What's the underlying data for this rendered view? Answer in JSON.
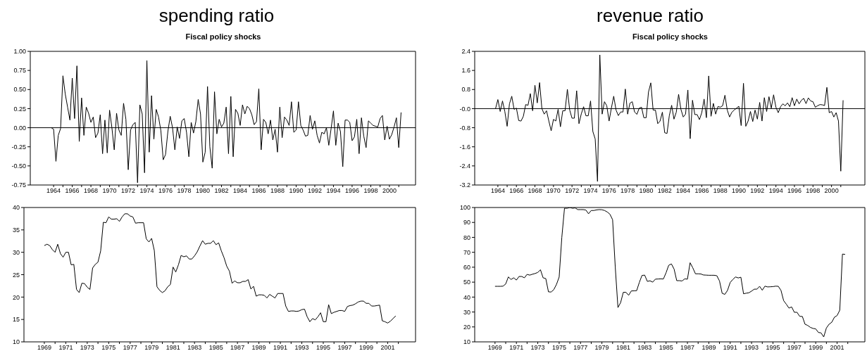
{
  "chart_data": [
    {
      "type": "line",
      "title": "spending ratio",
      "subtitle": "Fiscal policy shocks",
      "color": "#000000",
      "x": [
        1963.75,
        1964,
        1964.25,
        1964.5,
        1964.75,
        1965,
        1965.25,
        1965.5,
        1965.75,
        1966,
        1966.25,
        1966.5,
        1966.75,
        1967,
        1967.25,
        1967.5,
        1967.75,
        1968,
        1968.25,
        1968.5,
        1968.75,
        1969,
        1969.25,
        1969.5,
        1969.75,
        1970,
        1970.25,
        1970.5,
        1970.75,
        1971,
        1971.25,
        1971.5,
        1971.75,
        1972,
        1972.25,
        1972.5,
        1972.75,
        1973,
        1973.25,
        1973.5,
        1973.75,
        1974,
        1974.25,
        1974.5,
        1974.75,
        1975,
        1975.25,
        1975.5,
        1975.75,
        1976,
        1976.25,
        1976.5,
        1976.75,
        1977,
        1977.25,
        1977.5,
        1977.75,
        1978,
        1978.25,
        1978.5,
        1978.75,
        1979,
        1979.25,
        1979.5,
        1979.75,
        1980,
        1980.25,
        1980.5,
        1980.75,
        1981,
        1981.25,
        1981.5,
        1981.75,
        1982,
        1982.25,
        1982.5,
        1982.75,
        1983,
        1983.25,
        1983.5,
        1983.75,
        1984,
        1984.25,
        1984.5,
        1984.75,
        1985,
        1985.25,
        1985.5,
        1985.75,
        1986,
        1986.25,
        1986.5,
        1986.75,
        1987,
        1987.25,
        1987.5,
        1987.75,
        1988,
        1988.25,
        1988.5,
        1988.75,
        1989,
        1989.25,
        1989.5,
        1989.75,
        1990,
        1990.25,
        1990.5,
        1990.75,
        1991,
        1991.25,
        1991.5,
        1991.75,
        1992,
        1992.25,
        1992.5,
        1992.75,
        1993,
        1993.25,
        1993.5,
        1993.75,
        1994,
        1994.25,
        1994.5,
        1994.75,
        1995,
        1995.25,
        1995.5,
        1995.75,
        1996,
        1996.25,
        1996.5,
        1996.75,
        1997,
        1997.25,
        1997.5,
        1997.75,
        1998,
        1998.25,
        1998.5,
        1998.75,
        1999,
        1999.25,
        1999.5,
        1999.75,
        2000,
        2000.25,
        2000.5,
        2000.75,
        2001,
        2001.25
      ],
      "values": [
        0,
        -0.02,
        -0.44,
        -0.1,
        -0.01,
        0.68,
        0.44,
        0.27,
        0.1,
        0.65,
        0.12,
        0.81,
        -0.18,
        0.39,
        -0.1,
        0.27,
        0.19,
        0.07,
        0.14,
        -0.13,
        -0.07,
        0.17,
        -0.34,
        0.1,
        -0.33,
        0.23,
        0,
        -0.29,
        0.19,
        -0.03,
        -0.1,
        0.32,
        0.11,
        -0.55,
        -0.03,
        0.04,
        0.07,
        -0.72,
        0.3,
        0.18,
        -0.59,
        0.88,
        -0.32,
        0.42,
        -0.15,
        0.24,
        0.14,
        -0.04,
        -0.42,
        -0.35,
        -0.05,
        0.15,
        0,
        -0.29,
        0.01,
        -0.14,
        0.09,
        0.12,
        -0.06,
        -0.38,
        0.07,
        -0.07,
        0.08,
        0.37,
        0.18,
        -0.45,
        -0.32,
        0.54,
        -0.25,
        -0.53,
        0.47,
        -0.08,
        0.11,
        0.01,
        0.06,
        0.27,
        -0.34,
        0.41,
        -0.38,
        0.24,
        0.19,
        0.03,
        0.3,
        0.18,
        0.28,
        0.25,
        0.17,
        0.04,
        0.08,
        0.51,
        -0.29,
        0.11,
        0.07,
        -0.08,
        0.1,
        -0.16,
        -0.02,
        -0.32,
        0.27,
        -0.13,
        0.14,
        0.1,
        0.03,
        0.34,
        -0.06,
        -0.03,
        0.34,
        0.03,
        -0.03,
        -0.11,
        -0.1,
        0.16,
        -0.02,
        0.09,
        -0.1,
        -0.2,
        -0.06,
        -0.08,
        0,
        -0.23,
        -0.01,
        0.22,
        -0.23,
        0.06,
        -0.05,
        -0.51,
        0.1,
        0.1,
        0.07,
        -0.17,
        -0.12,
        0.11,
        -0.34,
        0.13,
        -0.11,
        -0.26,
        0.09,
        0.06,
        0.03,
        0.02,
        0.01,
        0.12,
        0.16,
        -0.16,
        0.02,
        -0.15,
        -0.09,
        0.01,
        0.13,
        -0.26,
        0.2
      ],
      "xlim": [
        1961.5,
        2002.8
      ],
      "xticks": [
        1964,
        {
          "value": 1965,
          "label": null
        },
        1966,
        {
          "value": 1967,
          "label": null
        },
        1968,
        {
          "value": 1969,
          "label": null
        },
        1970,
        {
          "value": 1971,
          "label": null
        },
        1972,
        {
          "value": 1973,
          "label": null
        },
        1974,
        {
          "value": 1975,
          "label": null
        },
        1976,
        {
          "value": 1977,
          "label": null
        },
        1978,
        {
          "value": 1979,
          "label": null
        },
        1980,
        {
          "value": 1981,
          "label": null
        },
        1982,
        {
          "value": 1983,
          "label": null
        },
        1984,
        {
          "value": 1985,
          "label": null
        },
        1986,
        {
          "value": 1987,
          "label": null
        },
        1988,
        {
          "value": 1989,
          "label": null
        },
        1990,
        {
          "value": 1991,
          "label": null
        },
        1992,
        {
          "value": 1993,
          "label": null
        },
        1994,
        {
          "value": 1995,
          "label": null
        },
        1996,
        {
          "value": 1997,
          "label": null
        },
        1998,
        {
          "value": 1999,
          "label": null
        },
        2000,
        {
          "value": 2001,
          "label": null
        }
      ],
      "ylim": [
        -0.75,
        1
      ],
      "yticks": [
        {
          "value": -0.75,
          "label": "-0.75"
        },
        {
          "value": -0.5,
          "label": "-0.50"
        },
        {
          "value": -0.25,
          "label": "-0.25"
        },
        {
          "value": 0,
          "label": "0.00"
        },
        {
          "value": 0.25,
          "label": "0.25"
        },
        {
          "value": 0.5,
          "label": "0.50"
        },
        {
          "value": 0.75,
          "label": "0.75"
        },
        {
          "value": 1,
          "label": "1.00"
        }
      ],
      "ref_lines": [
        {
          "axis": "y",
          "value": 0,
          "color": "#000000"
        }
      ]
    },
    {
      "type": "line",
      "title": "revenue ratio",
      "subtitle": "Fiscal policy shocks",
      "color": "#000000",
      "x": [
        1963.75,
        1964,
        1964.25,
        1964.5,
        1964.75,
        1965,
        1965.25,
        1965.5,
        1965.75,
        1966,
        1966.25,
        1966.5,
        1966.75,
        1967,
        1967.25,
        1967.5,
        1967.75,
        1968,
        1968.25,
        1968.5,
        1968.75,
        1969,
        1969.25,
        1969.5,
        1969.75,
        1970,
        1970.25,
        1970.5,
        1970.75,
        1971,
        1971.25,
        1971.5,
        1971.75,
        1972,
        1972.25,
        1972.5,
        1972.75,
        1973,
        1973.25,
        1973.5,
        1973.75,
        1974,
        1974.25,
        1974.5,
        1974.75,
        1975,
        1975.25,
        1975.5,
        1975.75,
        1976,
        1976.25,
        1976.5,
        1976.75,
        1977,
        1977.25,
        1977.5,
        1977.75,
        1978,
        1978.25,
        1978.5,
        1978.75,
        1979,
        1979.25,
        1979.5,
        1979.75,
        1980,
        1980.25,
        1980.5,
        1980.75,
        1981,
        1981.25,
        1981.5,
        1981.75,
        1982,
        1982.25,
        1982.5,
        1982.75,
        1983,
        1983.25,
        1983.5,
        1983.75,
        1984,
        1984.25,
        1984.5,
        1984.75,
        1985,
        1985.25,
        1985.5,
        1985.75,
        1986,
        1986.25,
        1986.5,
        1986.75,
        1987,
        1987.25,
        1987.5,
        1987.75,
        1988,
        1988.25,
        1988.5,
        1988.75,
        1989,
        1989.25,
        1989.5,
        1989.75,
        1990,
        1990.25,
        1990.5,
        1990.75,
        1991,
        1991.25,
        1991.5,
        1991.75,
        1992,
        1992.25,
        1992.5,
        1992.75,
        1993,
        1993.25,
        1993.5,
        1993.75,
        1994,
        1994.25,
        1994.5,
        1994.75,
        1995,
        1995.25,
        1995.5,
        1995.75,
        1996,
        1996.25,
        1996.5,
        1996.75,
        1997,
        1997.25,
        1997.5,
        1997.75,
        1998,
        1998.25,
        1998.5,
        1998.75,
        1999,
        1999.25,
        1999.5,
        1999.75,
        2000,
        2000.25,
        2000.5,
        2000.75,
        2001,
        2001.25
      ],
      "values": [
        0,
        0.38,
        -0.12,
        0.32,
        -0.12,
        -0.74,
        0.2,
        0.52,
        -0.03,
        0.02,
        -0.5,
        -0.52,
        -0.32,
        0.17,
        0.14,
        0.63,
        -0.09,
        0.98,
        0.24,
        1.09,
        0,
        -0.23,
        -0.09,
        -0.52,
        -0.93,
        -0.45,
        -0.52,
        -0.03,
        -0.76,
        -0.09,
        -0.09,
        0.81,
        -0.06,
        -0.4,
        -0.4,
        0.75,
        -0.63,
        -0.22,
        0.08,
        -0.3,
        -0.3,
        0.32,
        -0.96,
        -1.27,
        -3.05,
        2.25,
        -0.23,
        0.29,
        0.12,
        -0.52,
        0.03,
        0.52,
        -0.06,
        -0.29,
        -0.14,
        -0.14,
        0.82,
        -0.23,
        0.23,
        0.29,
        -0.14,
        -0.24,
        0.02,
        0.06,
        -0.38,
        -0.38,
        0.69,
        1.08,
        -0.06,
        -0.06,
        -0.63,
        -0.52,
        -0.15,
        -1.01,
        -1.04,
        -0.29,
        0.14,
        -0.44,
        -0.15,
        0.6,
        -0.03,
        -0.35,
        -0.23,
        0.78,
        -1.26,
        0.35,
        -0.25,
        -0.25,
        -0.46,
        -0.17,
        0.4,
        -0.38,
        1.37,
        -0.32,
        0.22,
        -0.23,
        0.09,
        0.06,
        0.12,
        0.56,
        -0.06,
        -0.35,
        -0.15,
        -0.06,
        0.02,
        0.1,
        -0.71,
        1.06,
        -0.74,
        -0.52,
        -0.12,
        -0.54,
        -0.06,
        -0.44,
        0.26,
        -0.52,
        0.46,
        -0.12,
        0.5,
        0.02,
        0.58,
        0.06,
        -0.17,
        0.08,
        0.2,
        0.12,
        0.24,
        0.08,
        0.46,
        0.12,
        0.4,
        0.2,
        0.35,
        0.43,
        0.21,
        0.45,
        0.32,
        0.29,
        0.06,
        0.12,
        0.17,
        0.16,
        0.13,
        0.89,
        -0.17,
        -0.12,
        -0.35,
        -0.17,
        -0.52,
        -2.62,
        0.35
      ],
      "xlim": [
        1961.5,
        2003.6
      ],
      "xticks": [
        1964,
        {
          "value": 1965,
          "label": null
        },
        1966,
        {
          "value": 1967,
          "label": null
        },
        1968,
        {
          "value": 1969,
          "label": null
        },
        1970,
        {
          "value": 1971,
          "label": null
        },
        1972,
        {
          "value": 1973,
          "label": null
        },
        1974,
        {
          "value": 1975,
          "label": null
        },
        1976,
        {
          "value": 1977,
          "label": null
        },
        1978,
        {
          "value": 1979,
          "label": null
        },
        1980,
        {
          "value": 1981,
          "label": null
        },
        1982,
        {
          "value": 1983,
          "label": null
        },
        1984,
        {
          "value": 1985,
          "label": null
        },
        1986,
        {
          "value": 1987,
          "label": null
        },
        1988,
        {
          "value": 1989,
          "label": null
        },
        1990,
        {
          "value": 1991,
          "label": null
        },
        1992,
        {
          "value": 1993,
          "label": null
        },
        1994,
        {
          "value": 1995,
          "label": null
        },
        1996,
        {
          "value": 1997,
          "label": null
        },
        1998,
        {
          "value": 1999,
          "label": null
        },
        2000,
        {
          "value": 2001,
          "label": null
        }
      ],
      "ylim": [
        -3.2,
        2.4
      ],
      "yticks": [
        -3.2,
        -2.4,
        -1.6,
        -0.8,
        {
          "value": 0,
          "label": "-0.0"
        },
        0.8,
        1.6,
        2.4
      ],
      "ref_lines": [
        {
          "axis": "y",
          "value": 0,
          "color": "#000000"
        }
      ]
    },
    {
      "type": "line",
      "color": "#000000",
      "x": [
        1969,
        1969.25,
        1969.5,
        1969.75,
        1970,
        1970.25,
        1970.5,
        1970.75,
        1971,
        1971.25,
        1971.5,
        1971.75,
        1972,
        1972.25,
        1972.5,
        1972.75,
        1973,
        1973.25,
        1973.5,
        1973.75,
        1974,
        1974.25,
        1974.5,
        1974.75,
        1975,
        1975.25,
        1975.5,
        1975.75,
        1976,
        1976.25,
        1976.5,
        1976.75,
        1977,
        1977.25,
        1977.5,
        1977.75,
        1978,
        1978.25,
        1978.5,
        1978.75,
        1979,
        1979.25,
        1979.5,
        1979.75,
        1980,
        1980.25,
        1980.5,
        1980.75,
        1981,
        1981.25,
        1981.5,
        1981.75,
        1982,
        1982.25,
        1982.5,
        1982.75,
        1983,
        1983.25,
        1983.5,
        1983.75,
        1984,
        1984.25,
        1984.5,
        1984.75,
        1985,
        1985.25,
        1985.5,
        1985.75,
        1986,
        1986.25,
        1986.5,
        1986.75,
        1987,
        1987.25,
        1987.5,
        1987.75,
        1988,
        1988.25,
        1988.5,
        1988.75,
        1989,
        1989.25,
        1989.5,
        1989.75,
        1990,
        1990.25,
        1990.5,
        1990.75,
        1991,
        1991.25,
        1991.5,
        1991.75,
        1992,
        1992.25,
        1992.5,
        1992.75,
        1993,
        1993.25,
        1993.5,
        1993.75,
        1994,
        1994.25,
        1994.5,
        1994.75,
        1995,
        1995.25,
        1995.5,
        1995.75,
        1996,
        1996.25,
        1996.5,
        1996.75,
        1997,
        1997.25,
        1997.5,
        1997.75,
        1998,
        1998.25,
        1998.5,
        1998.75,
        1999,
        1999.25,
        1999.5,
        1999.75,
        2000,
        2000.25,
        2000.5,
        2000.75,
        2001,
        2001.25,
        2001.5,
        2001.75
      ],
      "values": [
        31.5,
        31.8,
        31.5,
        30.6,
        30,
        31.8,
        29.7,
        28.9,
        30,
        30,
        27.2,
        27.3,
        21.7,
        21,
        23.1,
        23,
        22.2,
        21.7,
        26.5,
        27.3,
        27.8,
        30.3,
        36.7,
        36.6,
        37.9,
        37.4,
        37.4,
        37.5,
        36.9,
        37.9,
        38.6,
        38.6,
        38.1,
        37.9,
        36.5,
        36.6,
        36.6,
        36.6,
        33,
        32.3,
        33.1,
        30.4,
        22.3,
        21.5,
        21,
        21.4,
        22.3,
        22.8,
        26.7,
        25.6,
        27.2,
        29.3,
        29,
        29.2,
        28.5,
        28.5,
        29.2,
        30.1,
        31.4,
        32.6,
        31.8,
        32,
        32,
        32.6,
        31.7,
        32.1,
        30.3,
        28.8,
        26.9,
        25.8,
        23.1,
        23.6,
        23.2,
        23.2,
        23.5,
        23.5,
        23.9,
        21.8,
        22.4,
        20.2,
        20.5,
        20.5,
        20.4,
        19.8,
        20.6,
        20.2,
        19.8,
        20.8,
        20.8,
        20.8,
        18,
        16.8,
        16.9,
        16.9,
        16.8,
        16.9,
        17.2,
        17.3,
        15.6,
        14.5,
        15.2,
        14.9,
        15.6,
        16.5,
        14.5,
        14.5,
        18.3,
        16.3,
        16.6,
        16.8,
        17,
        17,
        16.8,
        17.9,
        18.1,
        18.2,
        18.5,
        18.9,
        19.1,
        19.1,
        18.6,
        18.6,
        18,
        18,
        18.1,
        18.2,
        14.7,
        14.5,
        14.2,
        14.6,
        15.2,
        15.8
      ],
      "xlim": [
        1967.1,
        2003.6
      ],
      "xticks": [
        1969,
        {
          "value": 1970,
          "label": null
        },
        1971,
        {
          "value": 1972,
          "label": null
        },
        1973,
        {
          "value": 1974,
          "label": null
        },
        1975,
        {
          "value": 1976,
          "label": null
        },
        1977,
        {
          "value": 1978,
          "label": null
        },
        1979,
        {
          "value": 1980,
          "label": null
        },
        1981,
        {
          "value": 1982,
          "label": null
        },
        1983,
        {
          "value": 1984,
          "label": null
        },
        1985,
        {
          "value": 1986,
          "label": null
        },
        1987,
        {
          "value": 1988,
          "label": null
        },
        1989,
        {
          "value": 1990,
          "label": null
        },
        1991,
        {
          "value": 1992,
          "label": null
        },
        1993,
        {
          "value": 1994,
          "label": null
        },
        1995,
        {
          "value": 1996,
          "label": null
        },
        1997,
        {
          "value": 1998,
          "label": null
        },
        1999,
        {
          "value": 2000,
          "label": null
        },
        2001,
        {
          "value": 2002,
          "label": null
        }
      ],
      "ylim": [
        10,
        40
      ],
      "yticks": [
        10,
        15,
        20,
        25,
        30,
        35,
        40
      ]
    },
    {
      "type": "line",
      "color": "#000000",
      "x": [
        1969,
        1969.25,
        1969.5,
        1969.75,
        1970,
        1970.25,
        1970.5,
        1970.75,
        1971,
        1971.25,
        1971.5,
        1971.75,
        1972,
        1972.25,
        1972.5,
        1972.75,
        1973,
        1973.25,
        1973.5,
        1973.75,
        1974,
        1974.25,
        1974.5,
        1974.75,
        1975,
        1975.25,
        1975.5,
        1975.75,
        1976,
        1976.25,
        1976.5,
        1976.75,
        1977,
        1977.25,
        1977.5,
        1977.75,
        1978,
        1978.25,
        1978.5,
        1978.75,
        1979,
        1979.25,
        1979.5,
        1979.75,
        1980,
        1980.25,
        1980.5,
        1980.75,
        1981,
        1981.25,
        1981.5,
        1981.75,
        1982,
        1982.25,
        1982.5,
        1982.75,
        1983,
        1983.25,
        1983.5,
        1983.75,
        1984,
        1984.25,
        1984.5,
        1984.75,
        1985,
        1985.25,
        1985.5,
        1985.75,
        1986,
        1986.25,
        1986.5,
        1986.75,
        1987,
        1987.25,
        1987.5,
        1987.75,
        1988,
        1988.25,
        1988.5,
        1988.75,
        1989,
        1989.25,
        1989.5,
        1989.75,
        1990,
        1990.25,
        1990.5,
        1990.75,
        1991,
        1991.25,
        1991.5,
        1991.75,
        1992,
        1992.25,
        1992.5,
        1992.75,
        1993,
        1993.25,
        1993.5,
        1993.75,
        1994,
        1994.25,
        1994.5,
        1994.75,
        1995,
        1995.25,
        1995.5,
        1995.75,
        1996,
        1996.25,
        1996.5,
        1996.75,
        1997,
        1997.25,
        1997.5,
        1997.75,
        1998,
        1998.25,
        1998.5,
        1998.75,
        1999,
        1999.25,
        1999.5,
        1999.75,
        2000,
        2000.25,
        2000.5,
        2000.75,
        2001,
        2001.25,
        2001.5,
        2001.75
      ],
      "values": [
        47.2,
        47.2,
        47.2,
        47.3,
        48.8,
        53.5,
        51.8,
        52.9,
        51.4,
        53.8,
        53.8,
        52.9,
        55.2,
        54.7,
        55.3,
        55.8,
        56.5,
        58.3,
        52.9,
        52.4,
        43.5,
        43.4,
        45,
        48.5,
        53.4,
        80,
        99.5,
        99.5,
        100,
        99.5,
        99.7,
        98.6,
        98.6,
        98.6,
        98.3,
        95.8,
        98,
        98,
        98.4,
        98.6,
        98.5,
        98,
        97,
        95.5,
        91.8,
        60,
        33,
        36.3,
        43.2,
        43.2,
        41.2,
        44.1,
        44.2,
        44.3,
        49.8,
        54.5,
        54.7,
        50.5,
        50.9,
        50,
        52,
        52.1,
        52.2,
        52.1,
        56.3,
        61.3,
        62.2,
        58.8,
        51,
        51,
        50.8,
        52.2,
        52,
        63,
        59.6,
        55.6,
        55.6,
        55.5,
        54.8,
        54.7,
        54.6,
        54.6,
        54.6,
        54.3,
        50.8,
        42.5,
        41.8,
        44.5,
        49.8,
        51.8,
        53.5,
        52.8,
        53.3,
        42.2,
        42.6,
        42.9,
        44,
        45.3,
        45.3,
        47.2,
        44.6,
        47.3,
        46.8,
        46.9,
        47,
        47.3,
        47.2,
        44.5,
        37.6,
        35.2,
        32.6,
        33.4,
        29.8,
        29.8,
        27.1,
        27,
        21.8,
        21,
        19.7,
        19,
        18.7,
        16.3,
        16,
        13.3,
        19.3,
        21.8,
        23.1,
        26.5,
        27.6,
        31.2,
        68.8,
        68.6
      ],
      "xlim": [
        1967.1,
        2003.6
      ],
      "xticks": [
        1969,
        {
          "value": 1970,
          "label": null
        },
        1971,
        {
          "value": 1972,
          "label": null
        },
        1973,
        {
          "value": 1974,
          "label": null
        },
        1975,
        {
          "value": 1976,
          "label": null
        },
        1977,
        {
          "value": 1978,
          "label": null
        },
        1979,
        {
          "value": 1980,
          "label": null
        },
        1981,
        {
          "value": 1982,
          "label": null
        },
        1983,
        {
          "value": 1984,
          "label": null
        },
        1985,
        {
          "value": 1986,
          "label": null
        },
        1987,
        {
          "value": 1988,
          "label": null
        },
        1989,
        {
          "value": 1990,
          "label": null
        },
        1991,
        {
          "value": 1992,
          "label": null
        },
        1993,
        {
          "value": 1994,
          "label": null
        },
        1995,
        {
          "value": 1996,
          "label": null
        },
        1997,
        {
          "value": 1998,
          "label": null
        },
        1999,
        {
          "value": 2000,
          "label": null
        },
        2001,
        {
          "value": 2002,
          "label": null
        }
      ],
      "ylim": [
        10,
        100
      ],
      "yticks": [
        10,
        20,
        30,
        40,
        50,
        60,
        70,
        80,
        90,
        100
      ]
    }
  ]
}
